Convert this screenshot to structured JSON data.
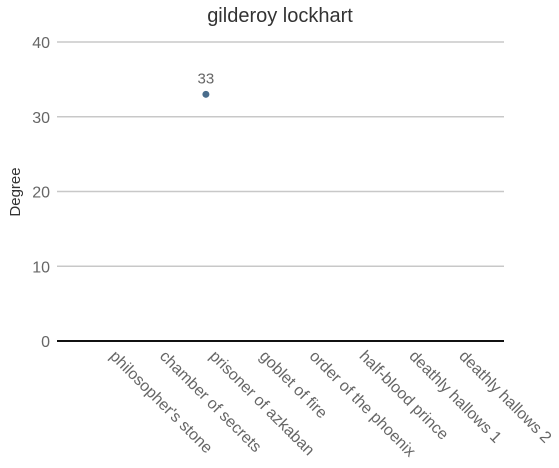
{
  "chart_data": {
    "type": "scatter",
    "title": "gilderoy lockhart",
    "xlabel": "",
    "ylabel": "Degree",
    "ylim": [
      0,
      40
    ],
    "yticks": [
      0,
      10,
      20,
      30,
      40
    ],
    "grid": true,
    "legend": "none",
    "categories": [
      "philosopher's stone",
      "chamber of secrets",
      "prisoner of azkaban",
      "goblet of fire",
      "order of the phoenix",
      "half-blood prince",
      "deathly hallows 1",
      "deathly hallows 2"
    ],
    "series": [
      {
        "color": "#4a6d8c",
        "values": [
          null,
          33,
          null,
          null,
          null,
          null,
          null,
          null
        ],
        "labels": [
          "",
          "33",
          "",
          "",
          "",
          "",
          "",
          ""
        ]
      }
    ]
  }
}
